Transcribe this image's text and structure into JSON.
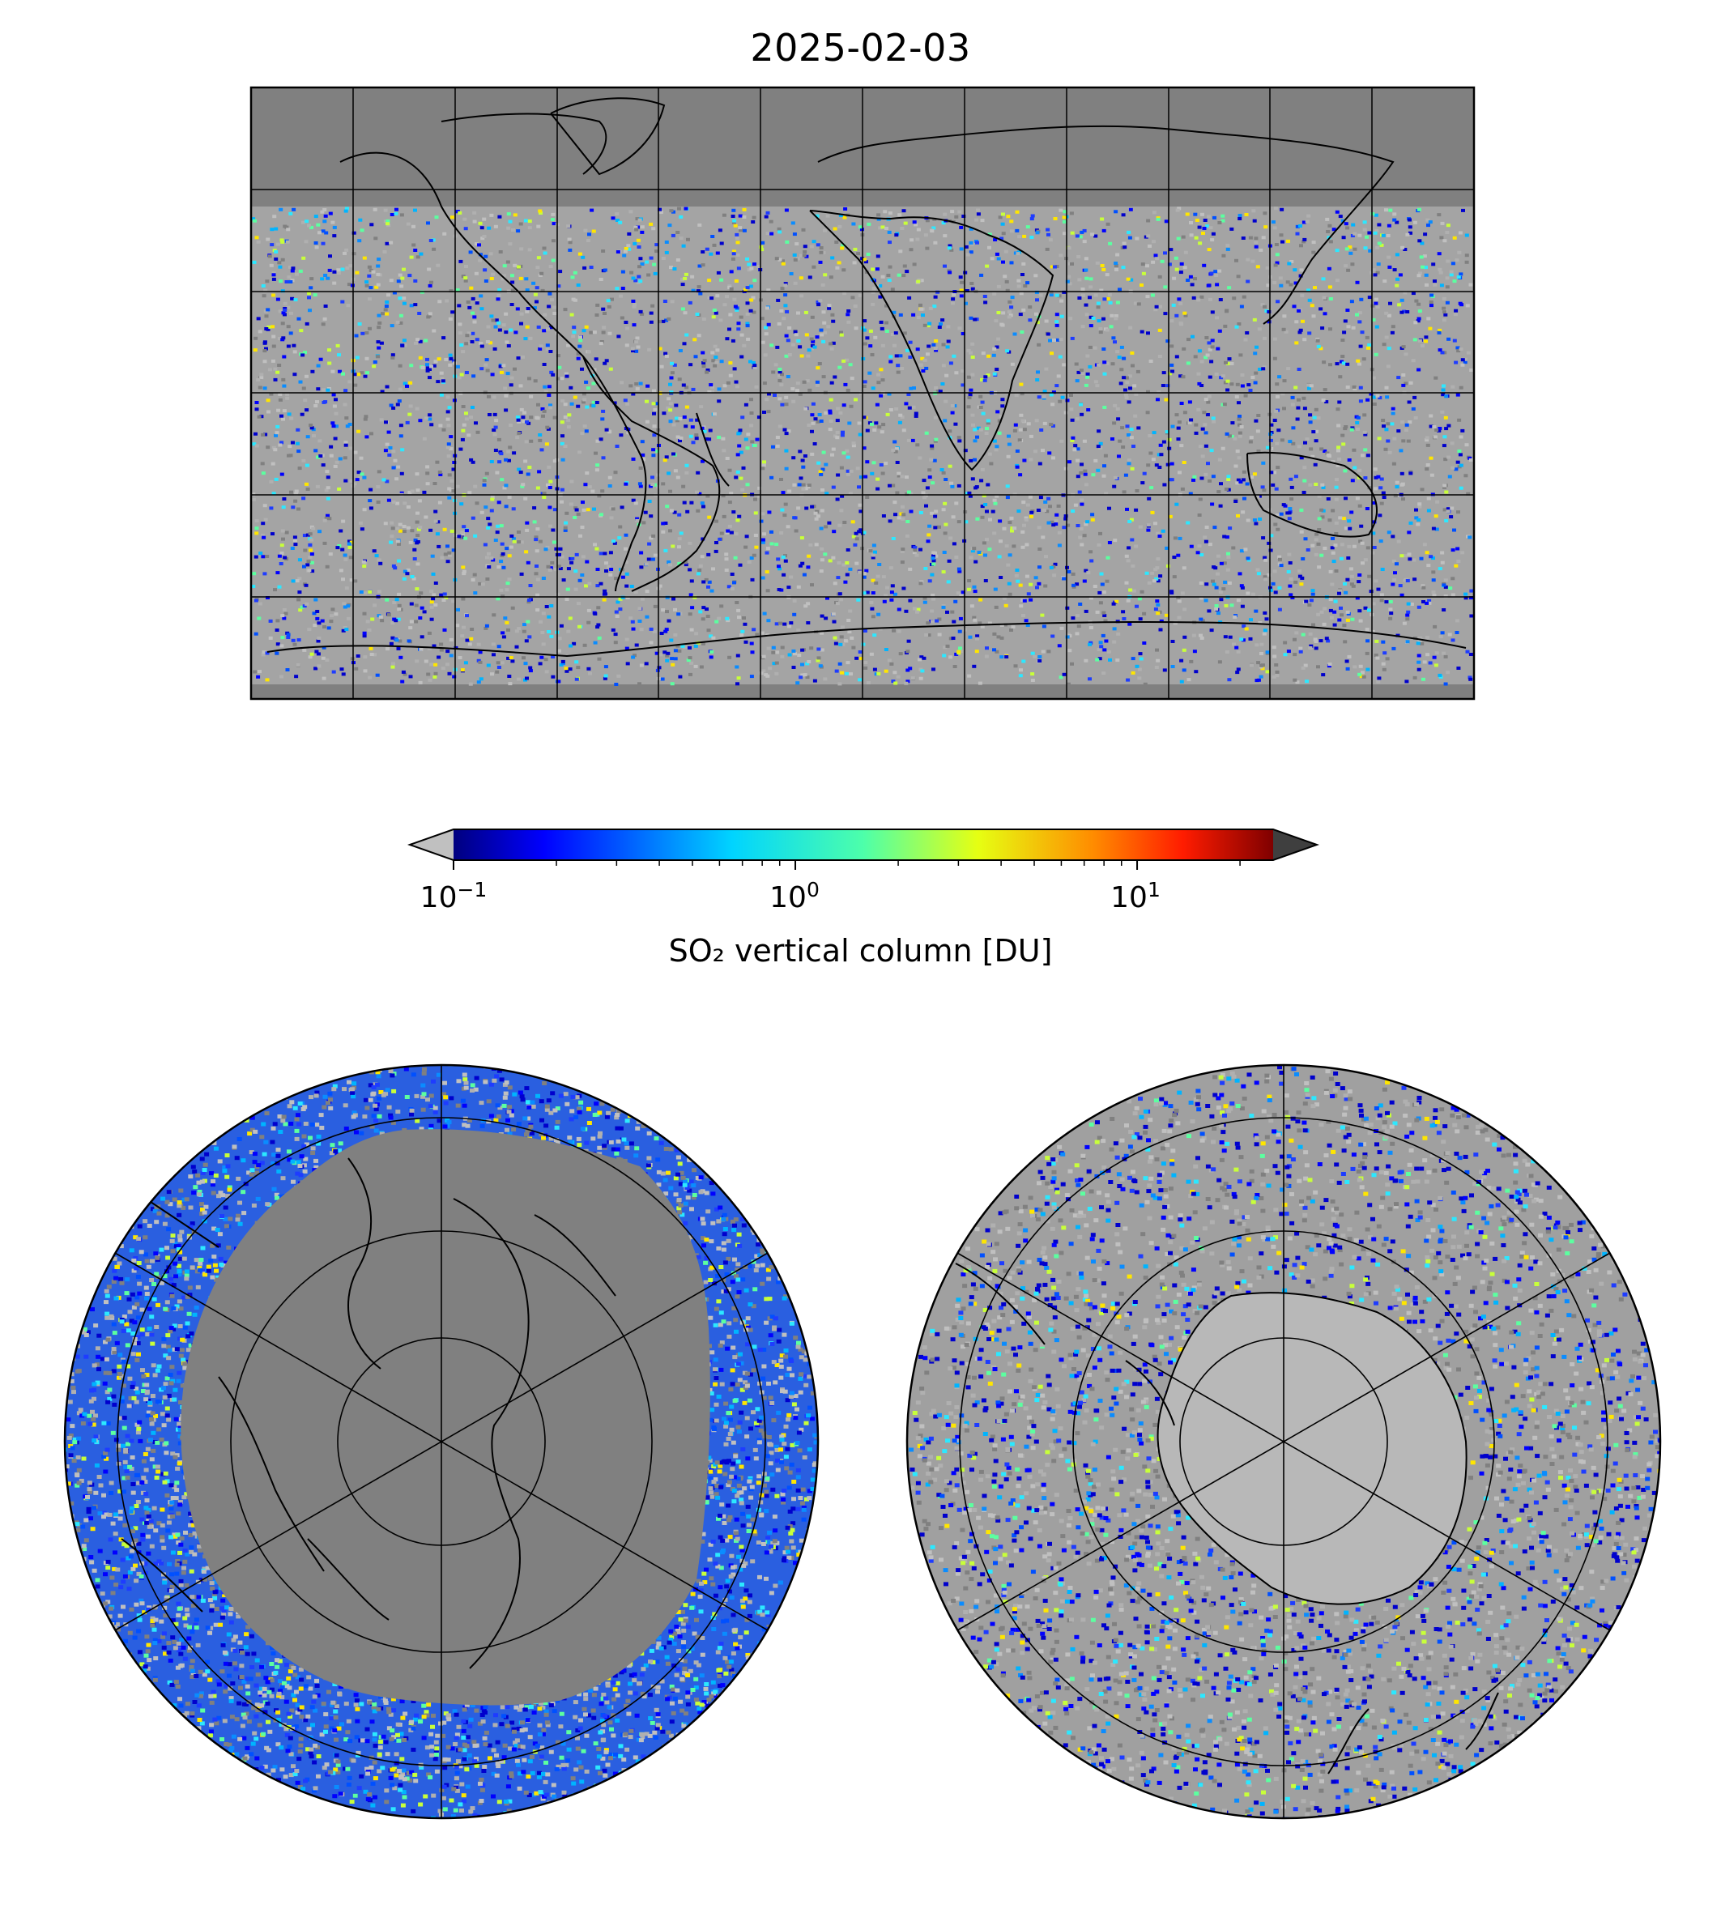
{
  "title": "2025-02-03",
  "colorbar": {
    "label": "SO₂ vertical column [DU]",
    "scale": "log",
    "range": [
      0.1,
      25
    ],
    "ticks": [
      {
        "base": "10",
        "exp": "−1",
        "value": 0.1
      },
      {
        "base": "10",
        "exp": "0",
        "value": 1
      },
      {
        "base": "10",
        "exp": "1",
        "value": 10
      }
    ],
    "colormap": "jet",
    "under_color": "#c0c0c0",
    "over_color": "#3f3f3f"
  },
  "maps": {
    "background": "#808080",
    "no_data_color": "#808080",
    "low_value_color": "#c0c0c0",
    "top": {
      "projection": "plate-carree",
      "lon_range": [
        -180,
        180
      ],
      "lat_range": [
        -90,
        90
      ],
      "gridlines": true,
      "coastlines": true
    },
    "north_polar": {
      "projection": "north-polar-stereographic",
      "gridlines": true,
      "coastlines": true
    },
    "south_polar": {
      "projection": "south-polar-stereographic",
      "gridlines": true,
      "coastlines": true
    }
  }
}
